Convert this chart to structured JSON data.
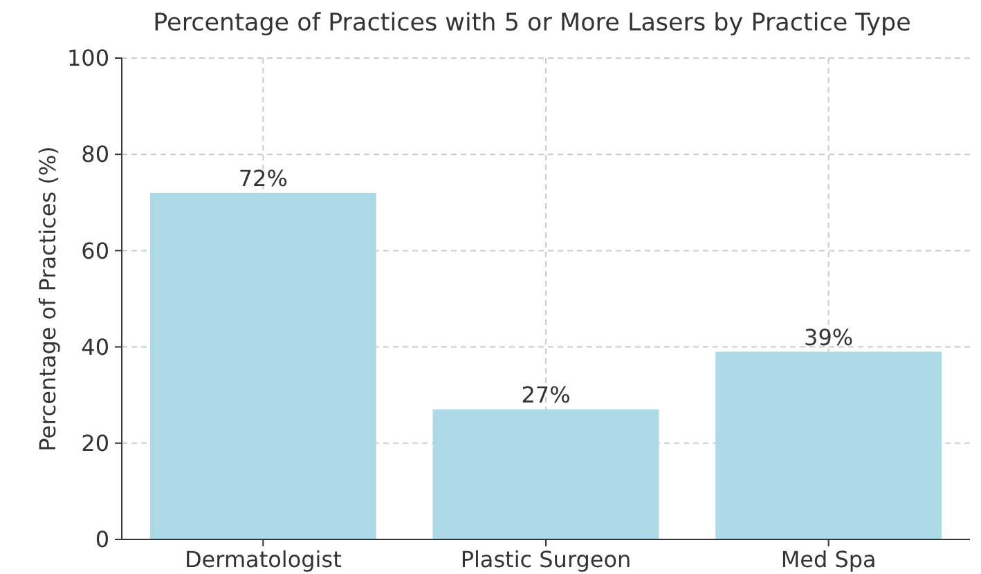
{
  "chart_data": {
    "type": "bar",
    "title": "Percentage of Practices with 5 or More Lasers by Practice Type",
    "ylabel": "Percentage of Practices (%)",
    "categories": [
      "Dermatologist",
      "Plastic Surgeon",
      "Med Spa"
    ],
    "values": [
      72,
      27,
      39
    ],
    "color": "#add8e6",
    "value_labels": [
      "72%",
      "27%",
      "39%"
    ],
    "ylim": [
      0,
      100
    ],
    "yticks": [
      0,
      20,
      40,
      60,
      80,
      100
    ],
    "grid": true
  }
}
